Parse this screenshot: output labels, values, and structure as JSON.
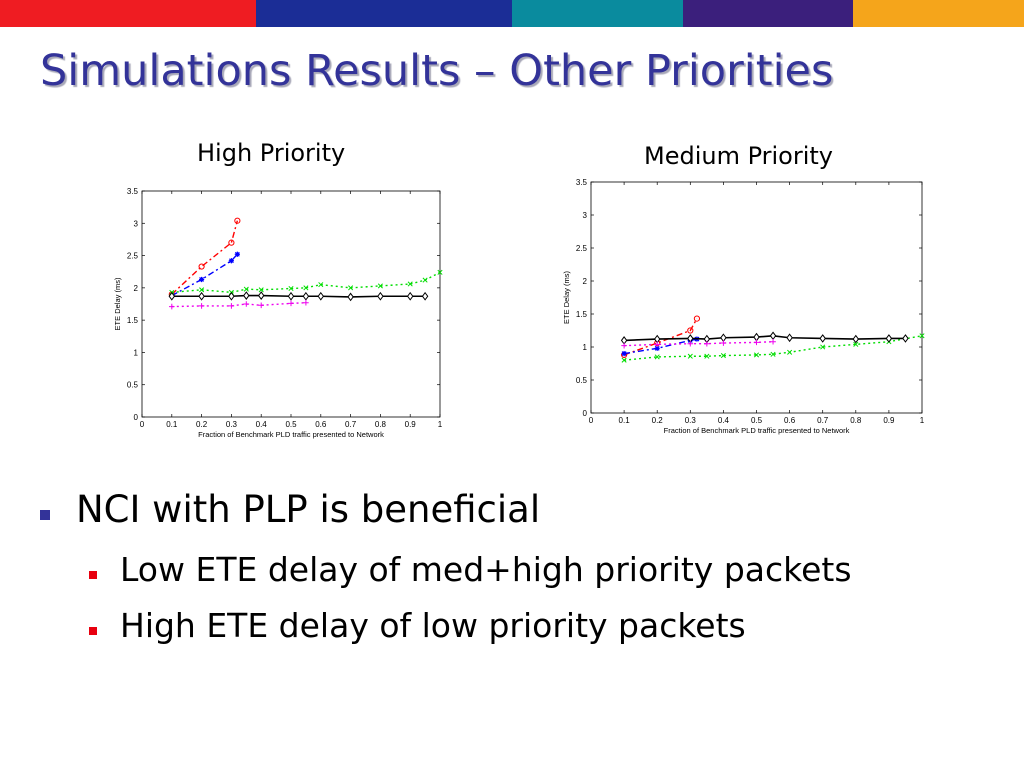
{
  "slide": {
    "title": "Simulations Results – Other Priorities",
    "top_bar_colors": [
      "#ef1c22",
      "#1b2d96",
      "#0a8b9e",
      "#3b1f7c",
      "#f5a51b"
    ]
  },
  "charts": {
    "high": {
      "title": "High Priority"
    },
    "medium": {
      "title": "Medium Priority"
    }
  },
  "bullets": {
    "main": "NCI with PLP is beneficial",
    "sub": [
      "Low ETE delay of med+high priority packets",
      "High ETE delay of low priority packets"
    ]
  },
  "chart_data": [
    {
      "type": "line",
      "title": "High Priority",
      "xlabel": "Fraction of Benchmark PLD traffic presented to Network",
      "ylabel": "ETE Delay (ms)",
      "xlim": [
        0,
        1
      ],
      "ylim": [
        0,
        3.5
      ],
      "xticks": [
        "0",
        "0.1",
        "0.2",
        "0.3",
        "0.4",
        "0.5",
        "0.6",
        "0.7",
        "0.8",
        "0.9",
        "1"
      ],
      "yticks": [
        "0",
        "0.5",
        "1",
        "1.5",
        "2",
        "2.5",
        "3",
        "3.5"
      ],
      "grid": false,
      "series": [
        {
          "color": "#ff0000",
          "marker": "o",
          "dash": "6,3,2,3",
          "x": [
            0.1,
            0.2,
            0.3,
            0.32
          ],
          "y": [
            1.9,
            2.33,
            2.7,
            3.04
          ]
        },
        {
          "color": "#0000ff",
          "marker": "*",
          "dash": "6,3,2,3",
          "x": [
            0.1,
            0.2,
            0.3,
            0.32
          ],
          "y": [
            1.88,
            2.13,
            2.42,
            2.52
          ]
        },
        {
          "color": "#00dd00",
          "marker": "x",
          "dash": "2,3",
          "x": [
            0.1,
            0.2,
            0.3,
            0.35,
            0.4,
            0.5,
            0.55,
            0.6,
            0.7,
            0.8,
            0.9,
            0.95,
            1.0
          ],
          "y": [
            1.93,
            1.97,
            1.93,
            1.98,
            1.97,
            1.99,
            2.0,
            2.05,
            2.0,
            2.03,
            2.06,
            2.12,
            2.24
          ]
        },
        {
          "color": "#000000",
          "marker": "d",
          "dash": "",
          "x": [
            0.1,
            0.2,
            0.3,
            0.35,
            0.4,
            0.5,
            0.55,
            0.6,
            0.7,
            0.8,
            0.9,
            0.95
          ],
          "y": [
            1.87,
            1.87,
            1.87,
            1.88,
            1.88,
            1.87,
            1.87,
            1.87,
            1.86,
            1.87,
            1.87,
            1.87
          ]
        },
        {
          "color": "#ee00ee",
          "marker": "+",
          "dash": "2,3",
          "x": [
            0.1,
            0.2,
            0.3,
            0.35,
            0.4,
            0.5,
            0.55
          ],
          "y": [
            1.71,
            1.72,
            1.72,
            1.75,
            1.73,
            1.76,
            1.77
          ]
        }
      ]
    },
    {
      "type": "line",
      "title": "Medium Priority",
      "xlabel": "Fraction of Benchmark PLD traffic presented to Network",
      "ylabel": "ETE Delay (ms)",
      "xlim": [
        0,
        1
      ],
      "ylim": [
        0,
        3.5
      ],
      "xticks": [
        "0",
        "0.1",
        "0.2",
        "0.3",
        "0.4",
        "0.5",
        "0.6",
        "0.7",
        "0.8",
        "0.9",
        "1"
      ],
      "yticks": [
        "0",
        "0.5",
        "1",
        "1.5",
        "2",
        "2.5",
        "3",
        "3.5"
      ],
      "grid": false,
      "series": [
        {
          "color": "#ff0000",
          "marker": "o",
          "dash": "6,3,2,3",
          "x": [
            0.1,
            0.2,
            0.3,
            0.32
          ],
          "y": [
            0.88,
            1.06,
            1.25,
            1.43
          ]
        },
        {
          "color": "#0000ff",
          "marker": "*",
          "dash": "6,3,2,3",
          "x": [
            0.1,
            0.2,
            0.3,
            0.32
          ],
          "y": [
            0.9,
            0.98,
            1.1,
            1.12
          ]
        },
        {
          "color": "#00dd00",
          "marker": "x",
          "dash": "2,3",
          "x": [
            0.1,
            0.2,
            0.3,
            0.35,
            0.4,
            0.5,
            0.55,
            0.6,
            0.7,
            0.8,
            0.9,
            1.0
          ],
          "y": [
            0.8,
            0.85,
            0.86,
            0.86,
            0.87,
            0.88,
            0.89,
            0.92,
            1.0,
            1.04,
            1.08,
            1.17
          ]
        },
        {
          "color": "#000000",
          "marker": "d",
          "dash": "",
          "x": [
            0.1,
            0.2,
            0.3,
            0.35,
            0.4,
            0.5,
            0.55,
            0.6,
            0.7,
            0.8,
            0.9,
            0.95
          ],
          "y": [
            1.1,
            1.12,
            1.13,
            1.12,
            1.14,
            1.15,
            1.17,
            1.14,
            1.13,
            1.12,
            1.13,
            1.13
          ]
        },
        {
          "color": "#ee00ee",
          "marker": "+",
          "dash": "2,3",
          "x": [
            0.1,
            0.2,
            0.3,
            0.35,
            0.4,
            0.5,
            0.55
          ],
          "y": [
            1.02,
            1.04,
            1.05,
            1.05,
            1.06,
            1.07,
            1.08
          ]
        }
      ]
    }
  ]
}
